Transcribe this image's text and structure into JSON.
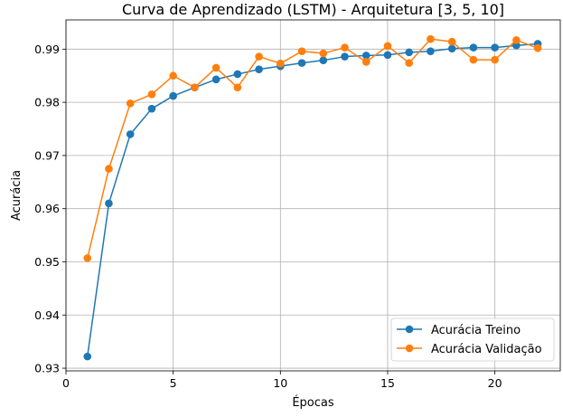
{
  "chart_data": {
    "type": "line",
    "title": "Curva de Aprendizado (LSTM) - Arquitetura [3, 5, 10]",
    "xlabel": "Épocas",
    "ylabel": "Acurácia",
    "xlim": [
      0,
      23.05
    ],
    "ylim": [
      0.9295,
      0.9955
    ],
    "x_ticks": [
      0,
      5,
      10,
      15,
      20
    ],
    "y_ticks": [
      0.93,
      0.94,
      0.95,
      0.96,
      0.97,
      0.98,
      0.99
    ],
    "x_tick_labels": [
      "0",
      "5",
      "10",
      "15",
      "20"
    ],
    "y_tick_labels": [
      "0.93",
      "0.94",
      "0.95",
      "0.96",
      "0.97",
      "0.98",
      "0.99"
    ],
    "grid": true,
    "legend_position": "lower-right",
    "x": [
      1,
      2,
      3,
      4,
      5,
      6,
      7,
      8,
      9,
      10,
      11,
      12,
      13,
      14,
      15,
      16,
      17,
      18,
      19,
      20,
      21,
      22
    ],
    "series": [
      {
        "name": "Acurácia Treino",
        "color": "#1f77b4",
        "values": [
          0.9322,
          0.961,
          0.974,
          0.9788,
          0.9812,
          0.9828,
          0.9843,
          0.9853,
          0.9862,
          0.9868,
          0.9874,
          0.9879,
          0.9886,
          0.9888,
          0.9889,
          0.9894,
          0.9896,
          0.9901,
          0.9903,
          0.9903,
          0.9907,
          0.991
        ]
      },
      {
        "name": "Acurácia Validação",
        "color": "#ff7f0e",
        "values": [
          0.9507,
          0.9675,
          0.9798,
          0.9815,
          0.985,
          0.9828,
          0.9865,
          0.9828,
          0.9886,
          0.9873,
          0.9896,
          0.9892,
          0.9903,
          0.9876,
          0.9906,
          0.9874,
          0.9919,
          0.9914,
          0.988,
          0.988,
          0.9917,
          0.9902
        ]
      }
    ]
  }
}
